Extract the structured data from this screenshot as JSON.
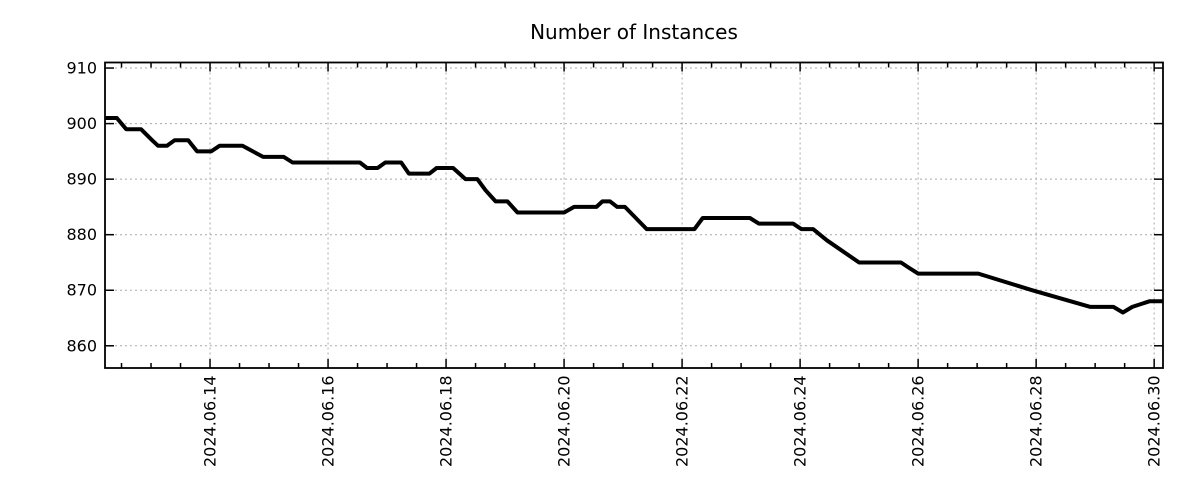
{
  "chart": {
    "title": "Number of Instances"
  },
  "chart_data": {
    "type": "line",
    "title": "Number of Instances",
    "xlabel": "",
    "ylabel": "",
    "x_unit": "date, expressed as fractional day of June 2024",
    "x_axis": {
      "range": [
        12.22,
        30.15
      ],
      "tick_label_days": [
        14,
        16,
        18,
        20,
        22,
        24,
        26,
        28,
        30
      ],
      "tick_labels": [
        "2024.06.14",
        "2024.06.16",
        "2024.06.18",
        "2024.06.20",
        "2024.06.22",
        "2024.06.24",
        "2024.06.26",
        "2024.06.28",
        "2024.06.30"
      ],
      "minor_tick_interval_days": 0.5,
      "label_rotation_deg": -90
    },
    "y_axis": {
      "range": [
        856,
        911
      ],
      "ticks": [
        860,
        870,
        880,
        890,
        900,
        910
      ]
    },
    "grid": {
      "show": true,
      "style": "dotted",
      "color": "#a9a9a9"
    },
    "legend": {
      "show": false
    },
    "line_color": "#000000",
    "background": "#ffffff",
    "series": [
      {
        "name": "instances",
        "color": "#000000",
        "points": [
          [
            12.23,
            901
          ],
          [
            12.42,
            901
          ],
          [
            12.58,
            899
          ],
          [
            12.83,
            899
          ],
          [
            13.02,
            897
          ],
          [
            13.12,
            896
          ],
          [
            13.27,
            896
          ],
          [
            13.4,
            897
          ],
          [
            13.63,
            897
          ],
          [
            13.78,
            895
          ],
          [
            14.02,
            895
          ],
          [
            14.16,
            896
          ],
          [
            14.55,
            896
          ],
          [
            14.9,
            894
          ],
          [
            15.25,
            894
          ],
          [
            15.4,
            893
          ],
          [
            16.54,
            893
          ],
          [
            16.66,
            892
          ],
          [
            16.84,
            892
          ],
          [
            16.97,
            893
          ],
          [
            17.24,
            893
          ],
          [
            17.37,
            891
          ],
          [
            17.72,
            891
          ],
          [
            17.84,
            892
          ],
          [
            18.12,
            892
          ],
          [
            18.33,
            890
          ],
          [
            18.53,
            890
          ],
          [
            18.67,
            888
          ],
          [
            18.84,
            886
          ],
          [
            19.04,
            886
          ],
          [
            19.21,
            884
          ],
          [
            20.0,
            884
          ],
          [
            20.17,
            885
          ],
          [
            20.55,
            885
          ],
          [
            20.65,
            886
          ],
          [
            20.78,
            886
          ],
          [
            20.9,
            885
          ],
          [
            21.03,
            885
          ],
          [
            21.4,
            881
          ],
          [
            22.21,
            881
          ],
          [
            22.35,
            883
          ],
          [
            23.15,
            883
          ],
          [
            23.3,
            882
          ],
          [
            23.88,
            882
          ],
          [
            24.02,
            881
          ],
          [
            24.22,
            881
          ],
          [
            24.45,
            879
          ],
          [
            25.0,
            875
          ],
          [
            25.71,
            875
          ],
          [
            25.85,
            874
          ],
          [
            26.0,
            873
          ],
          [
            27.02,
            873
          ],
          [
            27.93,
            870
          ],
          [
            28.92,
            867
          ],
          [
            29.31,
            867
          ],
          [
            29.47,
            866
          ],
          [
            29.63,
            867
          ],
          [
            29.92,
            868
          ],
          [
            30.15,
            868
          ]
        ]
      }
    ]
  }
}
